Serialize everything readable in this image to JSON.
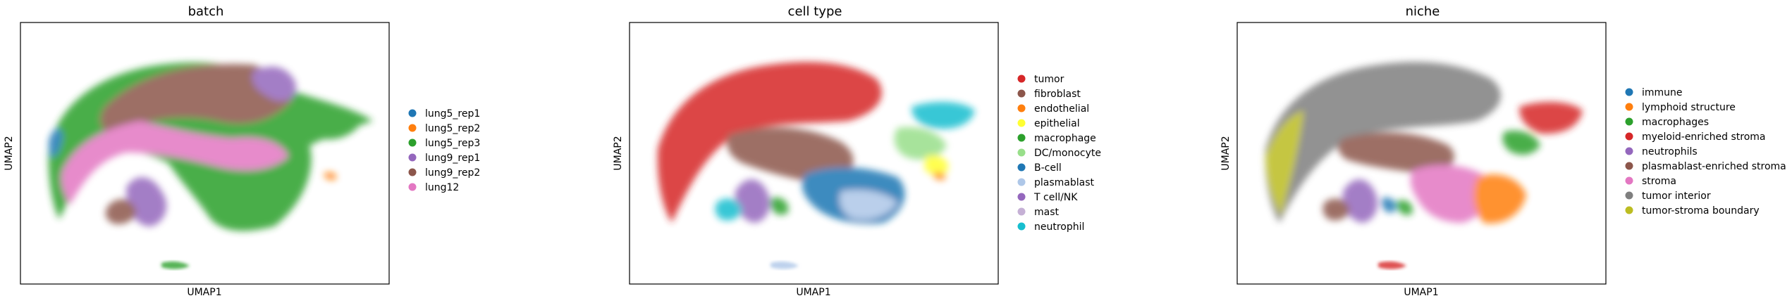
{
  "chart_data": [
    {
      "type": "scatter",
      "title": "batch",
      "xlabel": "UMAP1",
      "ylabel": "UMAP2",
      "grid": false,
      "legend_position": "right",
      "legend": [
        {
          "label": "lung5_rep1",
          "color": "#1f77b4"
        },
        {
          "label": "lung5_rep2",
          "color": "#ff7f0e"
        },
        {
          "label": "lung5_rep3",
          "color": "#2ca02c"
        },
        {
          "label": "lung9_rep1",
          "color": "#9467bd"
        },
        {
          "label": "lung9_rep2",
          "color": "#8c564b"
        },
        {
          "label": "lung12",
          "color": "#e377c2"
        }
      ]
    },
    {
      "type": "scatter",
      "title": "cell type",
      "xlabel": "UMAP1",
      "ylabel": "UMAP2",
      "grid": false,
      "legend_position": "right",
      "legend": [
        {
          "label": "tumor",
          "color": "#d62728"
        },
        {
          "label": "fibroblast",
          "color": "#8c564b"
        },
        {
          "label": "endothelial",
          "color": "#ff7f0e"
        },
        {
          "label": "epithelial",
          "color": "#ffff33"
        },
        {
          "label": "macrophage",
          "color": "#2ca02c"
        },
        {
          "label": "DC/monocyte",
          "color": "#98df8a"
        },
        {
          "label": "B-cell",
          "color": "#1f77b4"
        },
        {
          "label": "plasmablast",
          "color": "#aec7e8"
        },
        {
          "label": "T cell/NK",
          "color": "#9467bd"
        },
        {
          "label": "mast",
          "color": "#c5b0d5"
        },
        {
          "label": "neutrophil",
          "color": "#17becf"
        }
      ]
    },
    {
      "type": "scatter",
      "title": "niche",
      "xlabel": "UMAP1",
      "ylabel": "UMAP2",
      "grid": false,
      "legend_position": "right",
      "legend": [
        {
          "label": "immune",
          "color": "#1f77b4"
        },
        {
          "label": "lymphoid structure",
          "color": "#ff7f0e"
        },
        {
          "label": "macrophages",
          "color": "#2ca02c"
        },
        {
          "label": "myeloid-enriched stroma",
          "color": "#d62728"
        },
        {
          "label": "neutrophils",
          "color": "#9467bd"
        },
        {
          "label": "plasmablast-enriched stroma",
          "color": "#8c564b"
        },
        {
          "label": "stroma",
          "color": "#e377c2"
        },
        {
          "label": "tumor interior",
          "color": "#7f7f7f"
        },
        {
          "label": "tumor-stroma boundary",
          "color": "#bcbd22"
        }
      ]
    }
  ]
}
